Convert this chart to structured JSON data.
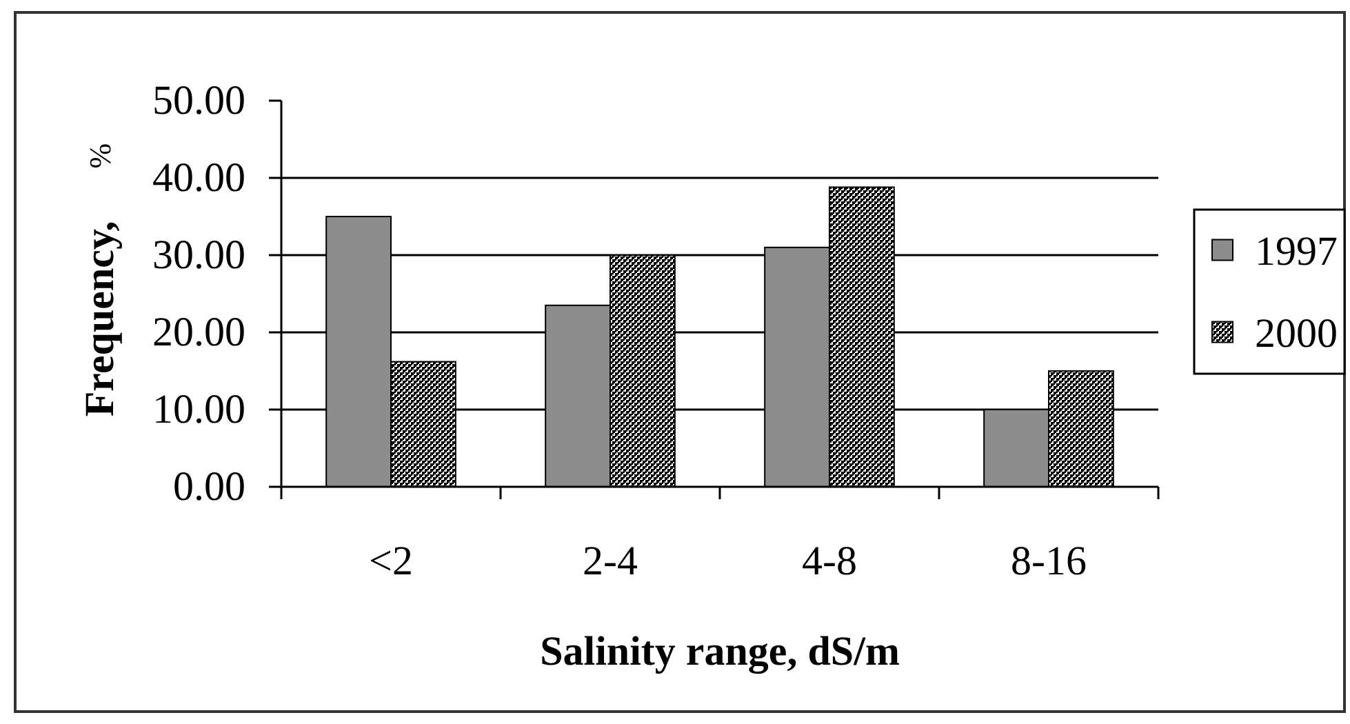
{
  "chart_data": {
    "type": "bar",
    "xlabel": "Salinity range, dS/m",
    "ylabel": "Frequency, %",
    "categories": [
      "<2",
      "2-4",
      "4-8",
      "8-16"
    ],
    "series": [
      {
        "name": "1997",
        "color": "#8c8c8c",
        "values": [
          35.0,
          23.5,
          31.0,
          10.0
        ]
      },
      {
        "name": "2000",
        "color": "#000000",
        "values": [
          16.2,
          30.0,
          38.8,
          15.0
        ]
      }
    ],
    "ylim": [
      0,
      50
    ],
    "yticks": [
      {
        "value": 0,
        "label": "0.00"
      },
      {
        "value": 10,
        "label": "10.00"
      },
      {
        "value": 20,
        "label": "20.00"
      },
      {
        "value": 30,
        "label": "30.00"
      },
      {
        "value": 40,
        "label": "40.00"
      },
      {
        "value": 50,
        "label": "50.00"
      }
    ],
    "grid": "y",
    "legend": "right"
  }
}
